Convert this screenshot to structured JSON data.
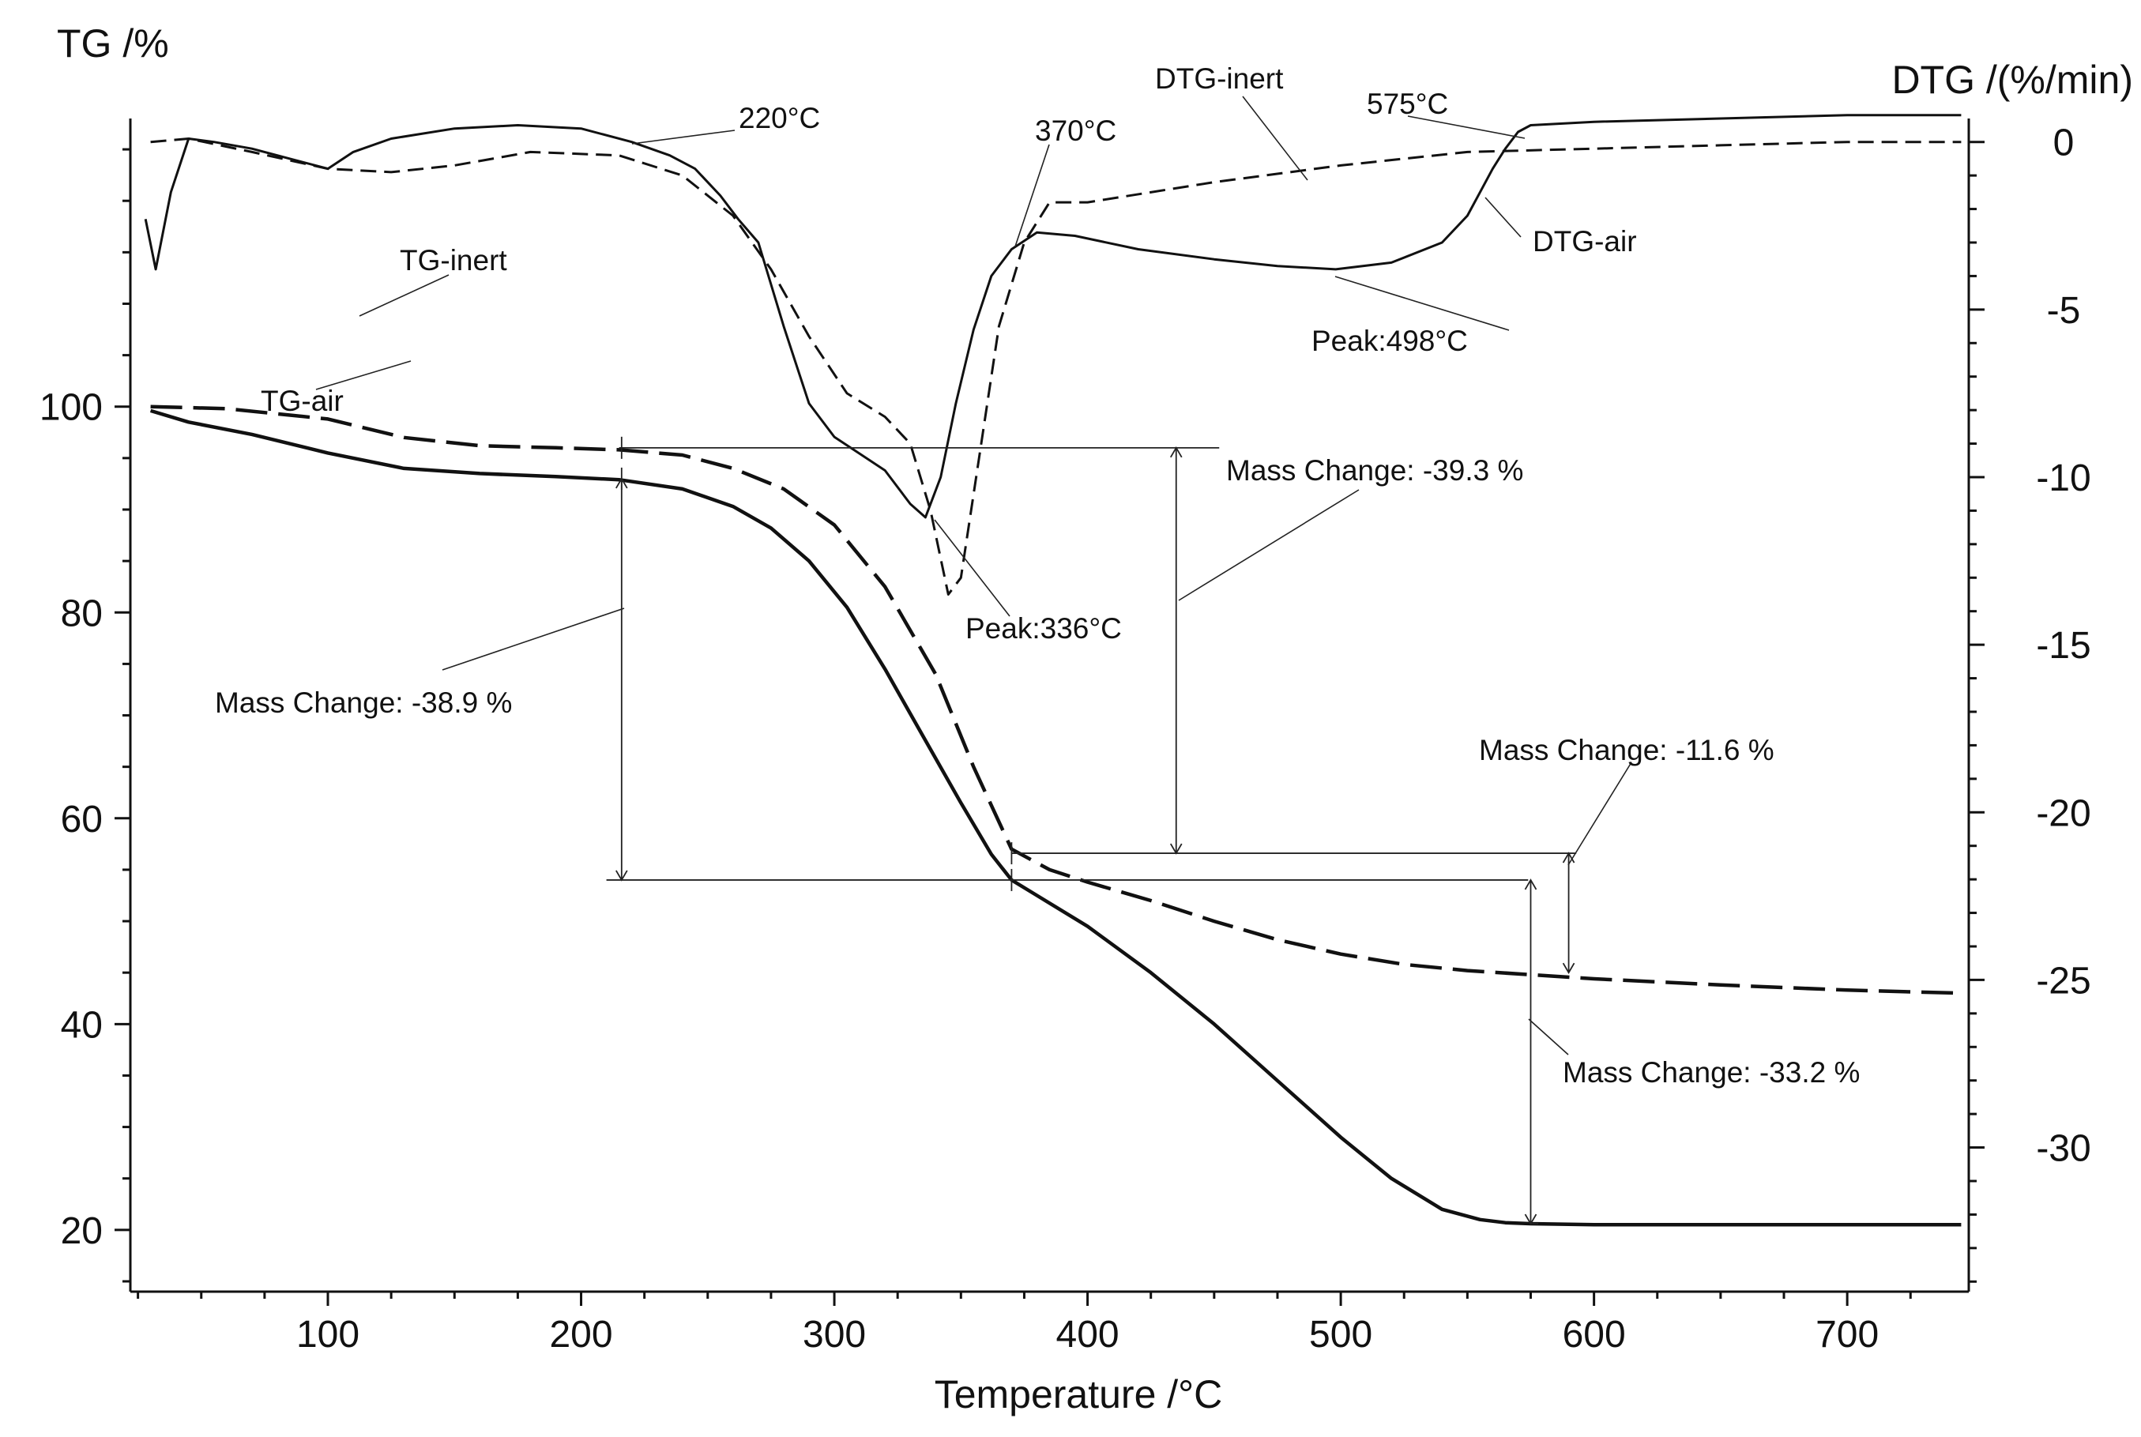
{
  "chart_data": {
    "type": "line",
    "title": "",
    "xlabel": "Temperature /°C",
    "ylabel_left": "TG /%",
    "ylabel_right": "DTG /(%/min)",
    "xlim": [
      22,
      748
    ],
    "ylim_left": [
      14,
      128
    ],
    "ylim_right": [
      -34.3,
      0.7
    ],
    "x_ticks": [
      100,
      200,
      300,
      400,
      500,
      600,
      700
    ],
    "y_left_ticks": [
      20,
      40,
      60,
      80,
      100
    ],
    "y_right_ticks": [
      0,
      -5,
      -10,
      -15,
      -20,
      -25,
      -30
    ],
    "grid": false,
    "series": [
      {
        "name": "TG-air",
        "axis": "left",
        "style": "solid",
        "x": [
          30,
          45,
          70,
          100,
          130,
          160,
          190,
          215,
          240,
          260,
          275,
          290,
          305,
          320,
          335,
          350,
          362,
          370,
          380,
          400,
          425,
          450,
          475,
          500,
          520,
          540,
          555,
          565,
          575,
          600,
          650,
          700,
          745
        ],
        "y": [
          99.6,
          98.5,
          97.3,
          95.5,
          94.0,
          93.5,
          93.2,
          92.9,
          92.0,
          90.3,
          88.2,
          85.0,
          80.5,
          74.5,
          68.0,
          61.5,
          56.5,
          54.0,
          52.5,
          49.5,
          45.0,
          40.0,
          34.5,
          29.0,
          25.0,
          22.0,
          21.0,
          20.7,
          20.6,
          20.5,
          20.5,
          20.5,
          20.5
        ]
      },
      {
        "name": "TG-inert",
        "axis": "left",
        "style": "dashed",
        "x": [
          30,
          60,
          100,
          130,
          160,
          190,
          215,
          240,
          260,
          280,
          300,
          320,
          340,
          355,
          370,
          385,
          400,
          425,
          450,
          475,
          500,
          525,
          550,
          575,
          600,
          650,
          700,
          745
        ],
        "y": [
          100.0,
          99.8,
          98.8,
          97.0,
          96.2,
          96.0,
          95.8,
          95.3,
          94.0,
          92.0,
          88.5,
          82.5,
          74.0,
          65.0,
          57.0,
          55.0,
          53.8,
          52.0,
          50.0,
          48.2,
          46.8,
          45.8,
          45.2,
          44.8,
          44.4,
          43.8,
          43.3,
          43.0
        ]
      },
      {
        "name": "DTG-air",
        "axis": "right",
        "style": "solid",
        "x": [
          28,
          32,
          38,
          45,
          55,
          70,
          85,
          100,
          110,
          125,
          150,
          175,
          200,
          220,
          235,
          245,
          255,
          262,
          270,
          280,
          290,
          300,
          310,
          320,
          330,
          336,
          342,
          348,
          355,
          362,
          370,
          380,
          395,
          420,
          450,
          475,
          498,
          520,
          540,
          550,
          555,
          560,
          565,
          570,
          575,
          600,
          650,
          700,
          745
        ],
        "y": [
          -2.3,
          -3.8,
          -1.5,
          0.1,
          0.0,
          -0.2,
          -0.5,
          -0.8,
          -0.3,
          0.1,
          0.4,
          0.5,
          0.4,
          0.0,
          -0.4,
          -0.8,
          -1.6,
          -2.3,
          -3.0,
          -5.5,
          -7.8,
          -8.8,
          -9.3,
          -9.8,
          -10.8,
          -11.2,
          -10.0,
          -7.8,
          -5.6,
          -4.0,
          -3.2,
          -2.7,
          -2.8,
          -3.2,
          -3.5,
          -3.7,
          -3.8,
          -3.6,
          -3.0,
          -2.2,
          -1.5,
          -0.8,
          -0.2,
          0.3,
          0.5,
          0.6,
          0.7,
          0.8,
          0.8
        ]
      },
      {
        "name": "DTG-inert",
        "axis": "right",
        "style": "dashed",
        "x": [
          30,
          45,
          70,
          100,
          125,
          150,
          180,
          215,
          240,
          260,
          275,
          290,
          305,
          320,
          330,
          338,
          345,
          350,
          357,
          365,
          375,
          385,
          400,
          450,
          500,
          550,
          600,
          650,
          700,
          745
        ],
        "y": [
          0.0,
          0.1,
          -0.3,
          -0.8,
          -0.9,
          -0.7,
          -0.3,
          -0.4,
          -1.0,
          -2.2,
          -3.8,
          -5.8,
          -7.5,
          -8.2,
          -9.0,
          -11.0,
          -13.5,
          -13.0,
          -9.5,
          -5.5,
          -3.0,
          -1.8,
          -1.8,
          -1.2,
          -0.7,
          -0.3,
          -0.2,
          -0.1,
          0.0,
          0.0
        ]
      }
    ],
    "annotations": [
      {
        "text": "TG-inert"
      },
      {
        "text": "TG-air"
      },
      {
        "text": "220°C"
      },
      {
        "text": "DTG-inert"
      },
      {
        "text": "370°C"
      },
      {
        "text": "575°C"
      },
      {
        "text": "DTG-air"
      },
      {
        "text": "Peak:498°C"
      },
      {
        "text": "Mass Change: -39.3 %"
      },
      {
        "text": "Peak:336°C"
      },
      {
        "text": "Mass Change: -38.9 %"
      },
      {
        "text": "Mass Change: -11.6 %"
      },
      {
        "text": "Mass Change: -33.2 %"
      }
    ]
  }
}
